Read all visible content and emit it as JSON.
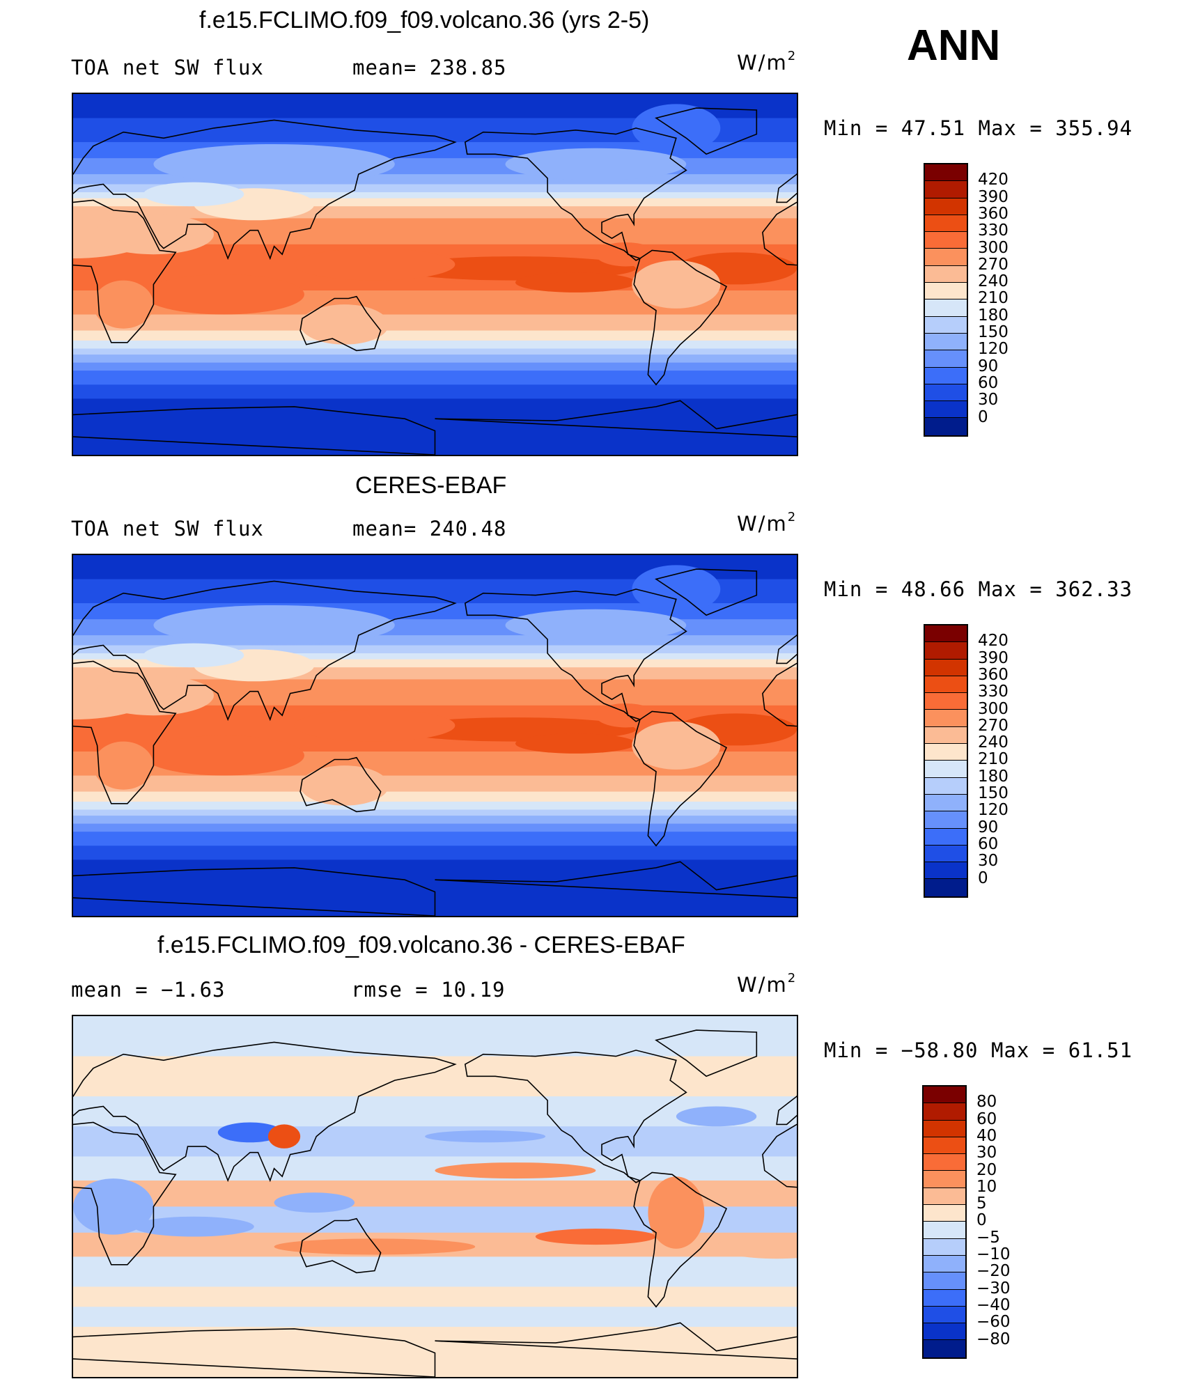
{
  "season": "ANN",
  "panels": [
    {
      "title": "f.e15.FCLIMO.f09_f09.volcano.36 (yrs 2-5)",
      "left_text": "TOA net SW flux",
      "center_text": "mean= 238.85",
      "units": "W/m",
      "units_sup": "2",
      "minmax": "Min =   47.51 Max = 355.94",
      "colorbar": {
        "labels": [
          "420",
          "390",
          "360",
          "330",
          "300",
          "270",
          "240",
          "210",
          "180",
          "150",
          "120",
          "90",
          "60",
          "30",
          "0"
        ],
        "colors": [
          "#7a0000",
          "#b01b00",
          "#d23400",
          "#ec4f14",
          "#f96c37",
          "#fb915d",
          "#fbbb95",
          "#fde5cc",
          "#d6e6f8",
          "#b6cefb",
          "#8fb1fb",
          "#6690fb",
          "#3c6ef9",
          "#1f4fe6",
          "#0a33c9",
          "#001c8c"
        ]
      },
      "chart_data": {
        "type": "heatmap",
        "field": "TOA net SW flux",
        "mean": 238.85,
        "min": 47.51,
        "max": 355.94,
        "levels": [
          0,
          30,
          60,
          90,
          120,
          150,
          180,
          210,
          240,
          270,
          300,
          330,
          360,
          390,
          420
        ]
      }
    },
    {
      "title": "CERES-EBAF",
      "left_text": "TOA net SW flux",
      "center_text": "mean= 240.48",
      "units": "W/m",
      "units_sup": "2",
      "minmax": "Min =   48.66 Max = 362.33",
      "colorbar": {
        "labels": [
          "420",
          "390",
          "360",
          "330",
          "300",
          "270",
          "240",
          "210",
          "180",
          "150",
          "120",
          "90",
          "60",
          "30",
          "0"
        ],
        "colors": [
          "#7a0000",
          "#b01b00",
          "#d23400",
          "#ec4f14",
          "#f96c37",
          "#fb915d",
          "#fbbb95",
          "#fde5cc",
          "#d6e6f8",
          "#b6cefb",
          "#8fb1fb",
          "#6690fb",
          "#3c6ef9",
          "#1f4fe6",
          "#0a33c9",
          "#001c8c"
        ]
      },
      "chart_data": {
        "type": "heatmap",
        "field": "TOA net SW flux",
        "mean": 240.48,
        "min": 48.66,
        "max": 362.33,
        "levels": [
          0,
          30,
          60,
          90,
          120,
          150,
          180,
          210,
          240,
          270,
          300,
          330,
          360,
          390,
          420
        ]
      }
    },
    {
      "title": "f.e15.FCLIMO.f09_f09.volcano.36 - CERES-EBAF",
      "left_text": "mean =   −1.63",
      "center_text": "rmse =   10.19",
      "units": "W/m",
      "units_sup": "2",
      "minmax": "Min = −58.80 Max =   61.51",
      "colorbar": {
        "labels": [
          "80",
          "60",
          "40",
          "30",
          "20",
          "10",
          "5",
          "0",
          "−5",
          "−10",
          "−20",
          "−30",
          "−40",
          "−60",
          "−80"
        ],
        "colors": [
          "#7a0000",
          "#b01b00",
          "#d23400",
          "#ec4f14",
          "#f96c37",
          "#fb915d",
          "#fbbb95",
          "#fde5cc",
          "#d6e6f8",
          "#b6cefb",
          "#8fb1fb",
          "#6690fb",
          "#3c6ef9",
          "#1f4fe6",
          "#0a33c9",
          "#001c8c"
        ]
      },
      "chart_data": {
        "type": "heatmap",
        "field": "TOA net SW flux difference",
        "mean": -1.63,
        "rmse": 10.19,
        "min": -58.8,
        "max": 61.51,
        "levels": [
          -80,
          -60,
          -40,
          -30,
          -20,
          -10,
          -5,
          0,
          5,
          10,
          20,
          30,
          40,
          60,
          80
        ]
      }
    }
  ]
}
